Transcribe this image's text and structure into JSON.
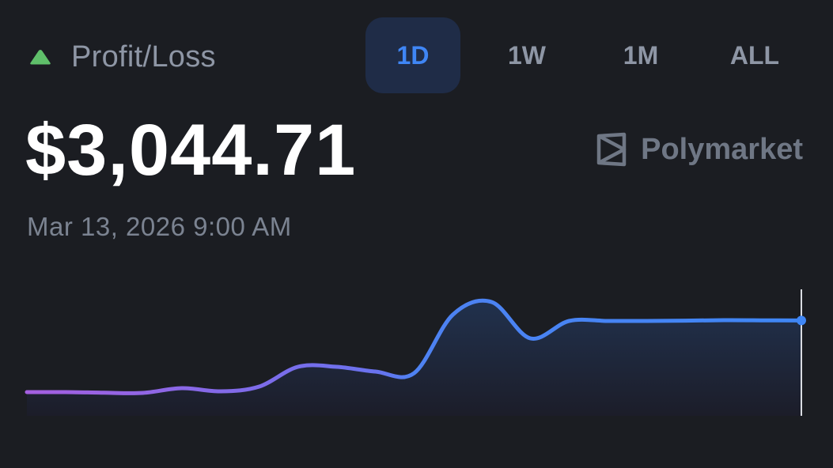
{
  "header": {
    "title": "Profit/Loss",
    "trend_icon": "triangle-up-icon",
    "trend_color": "#5fbf6a"
  },
  "range_tabs": [
    {
      "label": "1D",
      "active": true
    },
    {
      "label": "1W",
      "active": false
    },
    {
      "label": "1M",
      "active": false
    },
    {
      "label": "ALL",
      "active": false
    }
  ],
  "value": "$3,044.71",
  "timestamp": "Mar 13, 2026 9:00 AM",
  "brand": {
    "name": "Polymarket",
    "icon": "polymarket-logo-icon"
  },
  "colors": {
    "background": "#1b1d22",
    "accent": "#3f86f5",
    "line_start": "#a45fe0",
    "line_end": "#3f86f5"
  },
  "chart_data": {
    "type": "line",
    "x_axis_shown": false,
    "y_axis_shown": false,
    "grid": false,
    "values": [
      1.0,
      1.0,
      0.6,
      0.5,
      3.5,
      1.5,
      4.5,
      17.0,
      17.0,
      14.0,
      13.0,
      50.0,
      58.0,
      35.0,
      46.0,
      46.0,
      46.0,
      46.2,
      46.5,
      46.4,
      46.3
    ]
  }
}
